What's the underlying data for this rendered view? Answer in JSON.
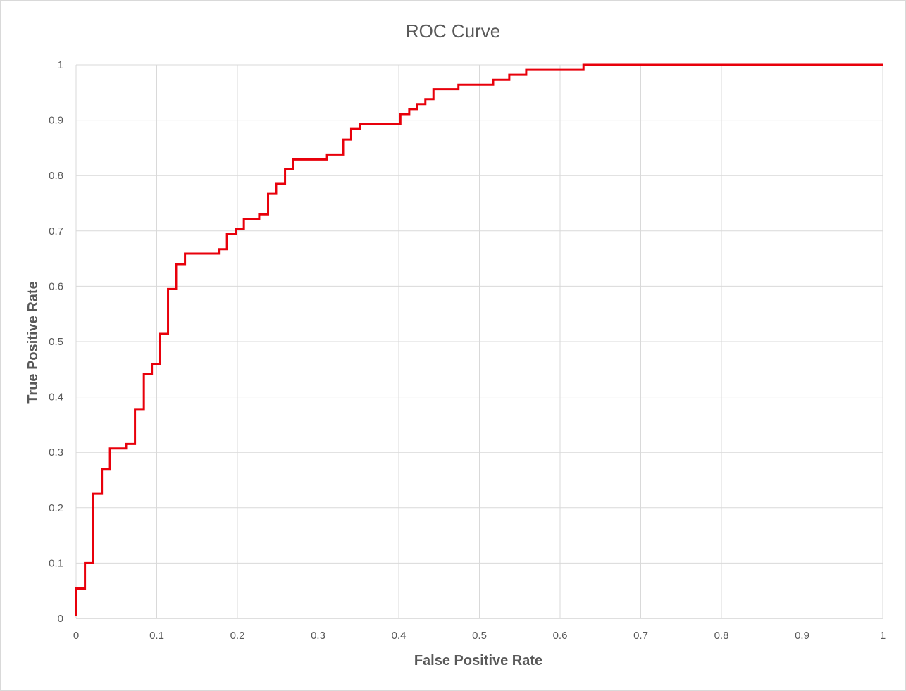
{
  "chart_data": {
    "type": "line",
    "title": "ROC Curve",
    "xlabel": "False Positive Rate",
    "ylabel": "True Positive Rate",
    "xlim": [
      0,
      1
    ],
    "ylim": [
      0,
      1
    ],
    "x_ticks": [
      "0",
      "0.1",
      "0.2",
      "0.3",
      "0.4",
      "0.5",
      "0.6",
      "0.7",
      "0.8",
      "0.9",
      "1"
    ],
    "y_ticks": [
      "0",
      "0.1",
      "0.2",
      "0.3",
      "0.4",
      "0.5",
      "0.6",
      "0.7",
      "0.8",
      "0.9",
      "1"
    ],
    "grid": true,
    "legend": "none",
    "step": true,
    "series": [
      {
        "color": "#e8000b",
        "x": [
          0,
          0,
          0.011,
          0.011,
          0.021,
          0.021,
          0.032,
          0.032,
          0.042,
          0.042,
          0.062,
          0.062,
          0.073,
          0.073,
          0.084,
          0.084,
          0.094,
          0.094,
          0.104,
          0.104,
          0.114,
          0.114,
          0.124,
          0.124,
          0.135,
          0.135,
          0.177,
          0.177,
          0.187,
          0.187,
          0.198,
          0.198,
          0.208,
          0.208,
          0.227,
          0.227,
          0.238,
          0.238,
          0.248,
          0.248,
          0.259,
          0.259,
          0.269,
          0.269,
          0.311,
          0.311,
          0.331,
          0.331,
          0.341,
          0.341,
          0.352,
          0.352,
          0.402,
          0.402,
          0.413,
          0.413,
          0.423,
          0.423,
          0.433,
          0.433,
          0.443,
          0.443,
          0.474,
          0.474,
          0.517,
          0.517,
          0.537,
          0.537,
          0.558,
          0.558,
          0.629,
          0.629,
          1
        ],
        "y": [
          0.005,
          0.054,
          0.054,
          0.1,
          0.1,
          0.225,
          0.225,
          0.27,
          0.27,
          0.307,
          0.307,
          0.315,
          0.315,
          0.378,
          0.378,
          0.442,
          0.442,
          0.46,
          0.46,
          0.514,
          0.514,
          0.595,
          0.595,
          0.64,
          0.64,
          0.659,
          0.659,
          0.667,
          0.667,
          0.694,
          0.694,
          0.703,
          0.703,
          0.721,
          0.721,
          0.73,
          0.73,
          0.767,
          0.767,
          0.785,
          0.785,
          0.811,
          0.811,
          0.829,
          0.829,
          0.838,
          0.838,
          0.865,
          0.865,
          0.884,
          0.884,
          0.893,
          0.893,
          0.911,
          0.911,
          0.92,
          0.92,
          0.929,
          0.929,
          0.938,
          0.938,
          0.956,
          0.956,
          0.964,
          0.964,
          0.973,
          0.973,
          0.982,
          0.982,
          0.991,
          0.991,
          1.0,
          1.0
        ]
      }
    ]
  }
}
